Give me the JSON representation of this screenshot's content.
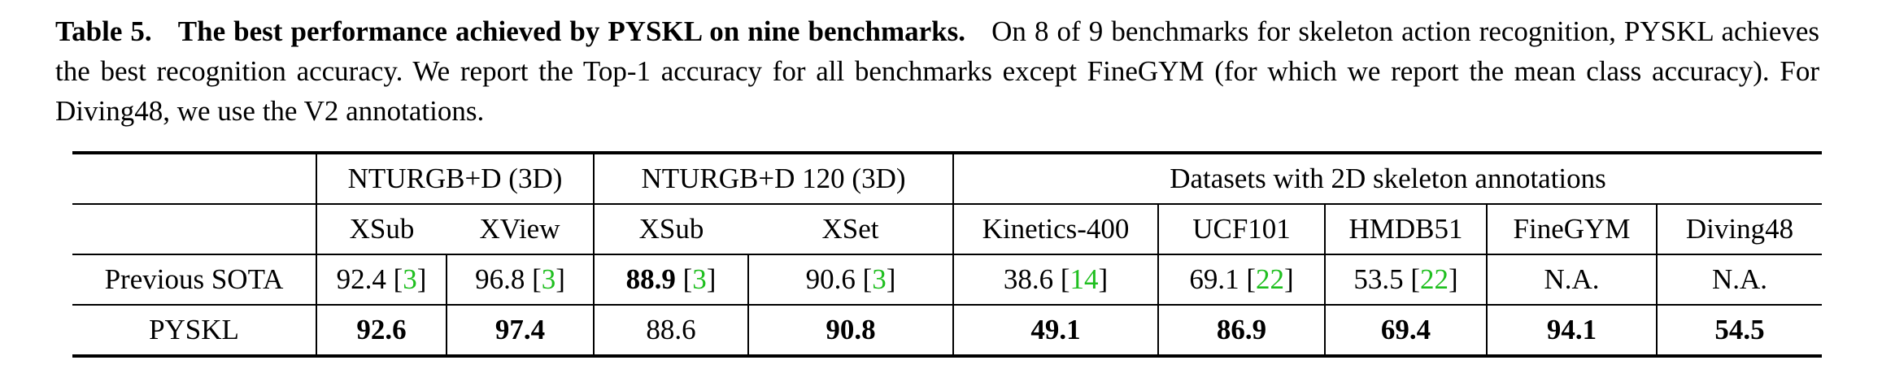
{
  "caption": {
    "label": "Table 5.",
    "title": "The best performance achieved by PYSKL on nine benchmarks.",
    "text": "On 8 of 9 benchmarks for skeleton action recognition, PYSKL achieves the best recognition accuracy. We report the Top-1 accuracy for all benchmarks except FineGYM (for which we report the mean class accuracy). For Diving48, we use the V2 annotations."
  },
  "table": {
    "groups": [
      "NTURGB+D (3D)",
      "NTURGB+D 120 (3D)",
      "Datasets with 2D skeleton annotations"
    ],
    "columns": [
      "XSub",
      "XView",
      "XSub",
      "XSet",
      "Kinetics-400",
      "UCF101",
      "HMDB51",
      "FineGYM",
      "Diving48"
    ],
    "rows": [
      {
        "label": "Previous SOTA",
        "cells": [
          {
            "value": 92.4,
            "ref": "[3]",
            "bold": false
          },
          {
            "value": 96.8,
            "ref": "[3]",
            "bold": false
          },
          {
            "value": 88.9,
            "ref": "[3]",
            "bold": true
          },
          {
            "value": 90.6,
            "ref": "[3]",
            "bold": false
          },
          {
            "value": 38.6,
            "ref": "[14]",
            "bold": false
          },
          {
            "value": 69.1,
            "ref": "[22]",
            "bold": false
          },
          {
            "value": 53.5,
            "ref": "[22]",
            "bold": false
          },
          {
            "value": "N.A.",
            "bold": false
          },
          {
            "value": "N.A.",
            "bold": false
          }
        ]
      },
      {
        "label": "PYSKL",
        "cells": [
          {
            "value": 92.6,
            "bold": true
          },
          {
            "value": 97.4,
            "bold": true
          },
          {
            "value": 88.6,
            "bold": false
          },
          {
            "value": 90.8,
            "bold": true
          },
          {
            "value": 49.1,
            "bold": true
          },
          {
            "value": 86.9,
            "bold": true
          },
          {
            "value": 69.4,
            "bold": true
          },
          {
            "value": 94.1,
            "bold": true
          },
          {
            "value": 54.5,
            "bold": true
          }
        ]
      }
    ]
  }
}
